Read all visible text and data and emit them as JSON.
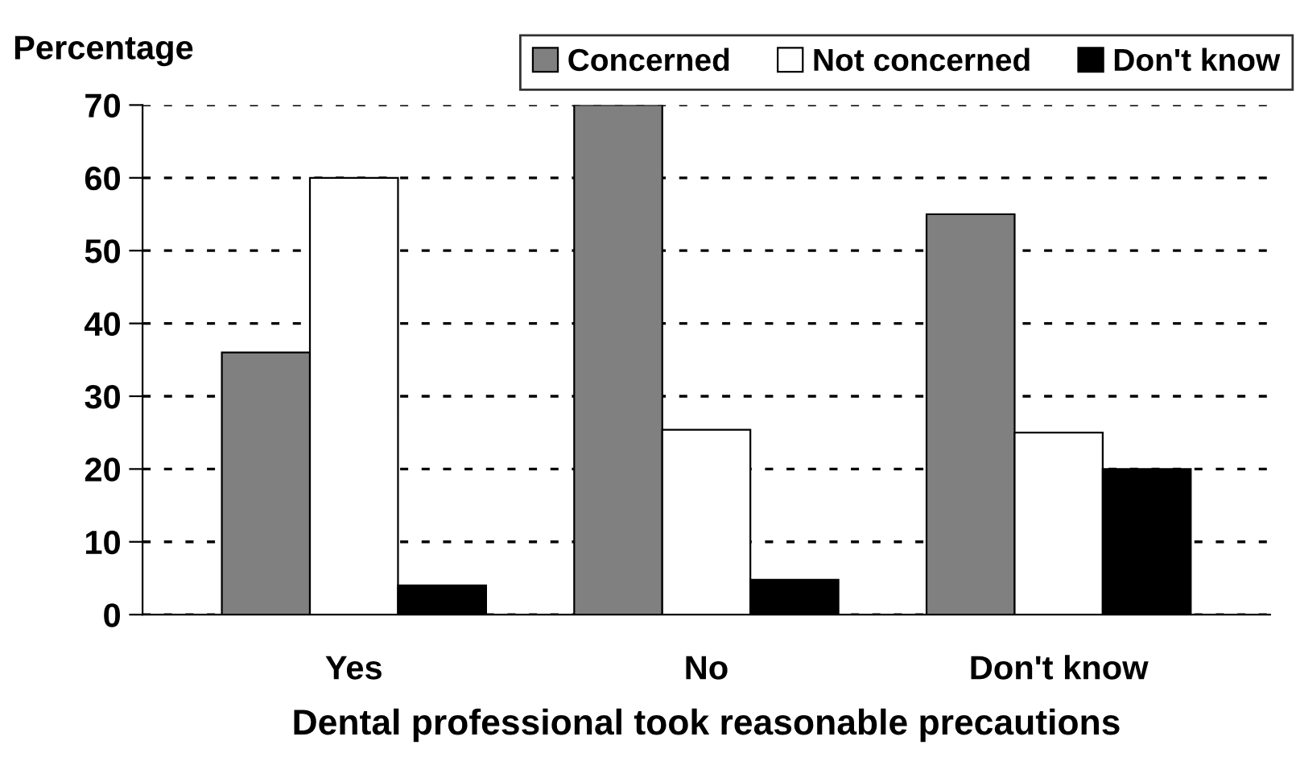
{
  "chart_data": {
    "type": "bar",
    "ylabel": "Percentage",
    "xlabel": "Dental professional took reasonable precautions",
    "categories": [
      "Yes",
      "No",
      "Don't know"
    ],
    "series": [
      {
        "name": "Concerned",
        "color": "#808080",
        "values": [
          36,
          70,
          55
        ]
      },
      {
        "name": "Not concerned",
        "color": "#ffffff",
        "values": [
          60,
          25.4,
          25
        ]
      },
      {
        "name": "Don't know",
        "color": "#000000",
        "values": [
          4,
          4.8,
          20
        ]
      }
    ],
    "ylim": [
      0,
      70
    ],
    "yticks": [
      0,
      10,
      20,
      30,
      40,
      50,
      60,
      70
    ],
    "grid": "y",
    "legend": "top right"
  }
}
